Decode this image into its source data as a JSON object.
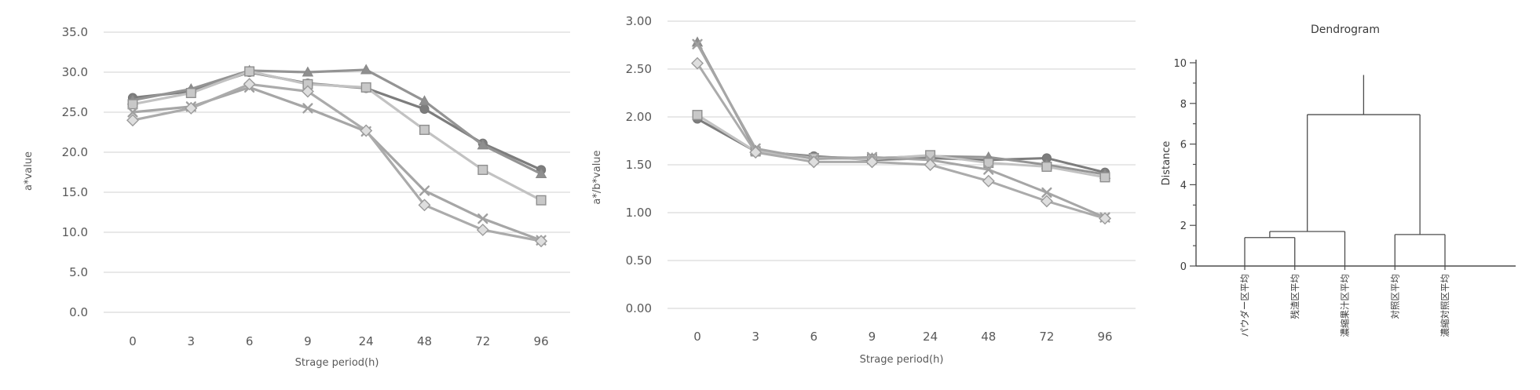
{
  "chart_data": [
    {
      "type": "line",
      "title": "",
      "xlabel": "Strage period(h)",
      "ylabel": "a*value",
      "categories": [
        "0",
        "3",
        "6",
        "9",
        "24",
        "48",
        "72",
        "96"
      ],
      "ylim": [
        0,
        35
      ],
      "ytick_step": 5,
      "ytick_labels_top_to_bottom": [
        "35.0",
        "30.0",
        "25.0",
        "20.0",
        "15.0",
        "10.0",
        "5.0",
        "0.0"
      ],
      "grid": true,
      "legend": "none",
      "series": [
        {
          "name": "circle-series",
          "marker": "circle",
          "color": "#7d7d7d",
          "fill": "#7d7d7d",
          "stroke": "#757575",
          "values": [
            26.8,
            27.6,
            30.0,
            28.6,
            28.0,
            25.4,
            21.1,
            17.8
          ]
        },
        {
          "name": "triangle-series",
          "marker": "triangle",
          "color": "#949494",
          "fill": "#8f8f8f",
          "stroke": "#888888",
          "values": [
            26.5,
            27.9,
            30.2,
            30.0,
            30.3,
            26.4,
            20.9,
            17.3
          ]
        },
        {
          "name": "square-series",
          "marker": "square",
          "color": "#c2c2c2",
          "fill": "#c8c8c8",
          "stroke": "#8f8f8f",
          "values": [
            26.0,
            27.4,
            30.1,
            28.5,
            28.1,
            22.8,
            17.8,
            14.0
          ]
        },
        {
          "name": "x-series",
          "marker": "x",
          "color": "#a6a6a6",
          "fill": "none",
          "stroke": "#a0a0a0",
          "values": [
            25.0,
            25.7,
            28.1,
            25.5,
            22.6,
            15.2,
            11.7,
            9.0
          ]
        },
        {
          "name": "diamond-series",
          "marker": "diamond",
          "color": "#ababab",
          "fill": "#dedede",
          "stroke": "#9b9b9b",
          "values": [
            24.0,
            25.5,
            28.5,
            27.6,
            22.7,
            13.4,
            10.3,
            8.9
          ]
        }
      ]
    },
    {
      "type": "line",
      "title": "",
      "xlabel": "Strage period(h)",
      "ylabel": "a*/b*value",
      "categories": [
        "0",
        "3",
        "6",
        "9",
        "24",
        "48",
        "72",
        "96"
      ],
      "ylim": [
        0,
        3
      ],
      "ytick_step": 0.5,
      "ytick_labels_top_to_bottom": [
        "3.00",
        "2.50",
        "2.00",
        "1.50",
        "1.00",
        "0.50",
        "0.00"
      ],
      "grid": true,
      "legend": "none",
      "series": [
        {
          "name": "circle-series",
          "marker": "circle",
          "color": "#7d7d7d",
          "fill": "#7d7d7d",
          "stroke": "#757575",
          "values": [
            1.98,
            1.64,
            1.59,
            1.55,
            1.57,
            1.55,
            1.57,
            1.42
          ]
        },
        {
          "name": "triangle-series",
          "marker": "triangle",
          "color": "#949494",
          "fill": "#8f8f8f",
          "stroke": "#888888",
          "values": [
            2.78,
            1.65,
            1.58,
            1.57,
            1.59,
            1.58,
            1.5,
            1.4
          ]
        },
        {
          "name": "square-series",
          "marker": "square",
          "color": "#c2c2c2",
          "fill": "#c8c8c8",
          "stroke": "#8f8f8f",
          "values": [
            2.02,
            1.64,
            1.57,
            1.56,
            1.6,
            1.52,
            1.48,
            1.37
          ]
        },
        {
          "name": "x-series",
          "marker": "x",
          "color": "#a6a6a6",
          "fill": "none",
          "stroke": "#a0a0a0",
          "values": [
            2.76,
            1.67,
            1.56,
            1.58,
            1.55,
            1.45,
            1.21,
            0.95
          ]
        },
        {
          "name": "diamond-series",
          "marker": "diamond",
          "color": "#ababab",
          "fill": "#dedede",
          "stroke": "#9b9b9b",
          "values": [
            2.56,
            1.63,
            1.53,
            1.53,
            1.5,
            1.33,
            1.12,
            0.94
          ]
        }
      ]
    },
    {
      "type": "dendrogram",
      "title": "Dendrogram",
      "ylabel": "Distance",
      "ylim": [
        0,
        10
      ],
      "ytick_labels_top_to_bottom": [
        "10",
        "8",
        "6",
        "4",
        "2",
        "0"
      ],
      "leaves": [
        "パウダー区平均",
        "残渣区平均",
        "濃縮果汁区平均",
        "対照区平均",
        "濃縮対照区平均"
      ],
      "merges": [
        {
          "join": [
            "leaf-0",
            "leaf-1"
          ],
          "height": 1.4
        },
        {
          "join": [
            "merge-0",
            "leaf-2"
          ],
          "height": 1.7
        },
        {
          "join": [
            "leaf-3",
            "leaf-4"
          ],
          "height": 1.55
        },
        {
          "join": [
            "merge-1",
            "merge-2"
          ],
          "height": 7.45
        }
      ],
      "root_stem_top": 9.4
    }
  ],
  "colors": {
    "background": "#ffffff",
    "gridline": "#d9d9d9",
    "axis_text": "#595959",
    "dendrogram_line": "#4d4d4d",
    "dendrogram_text": "#3b3b3b"
  }
}
